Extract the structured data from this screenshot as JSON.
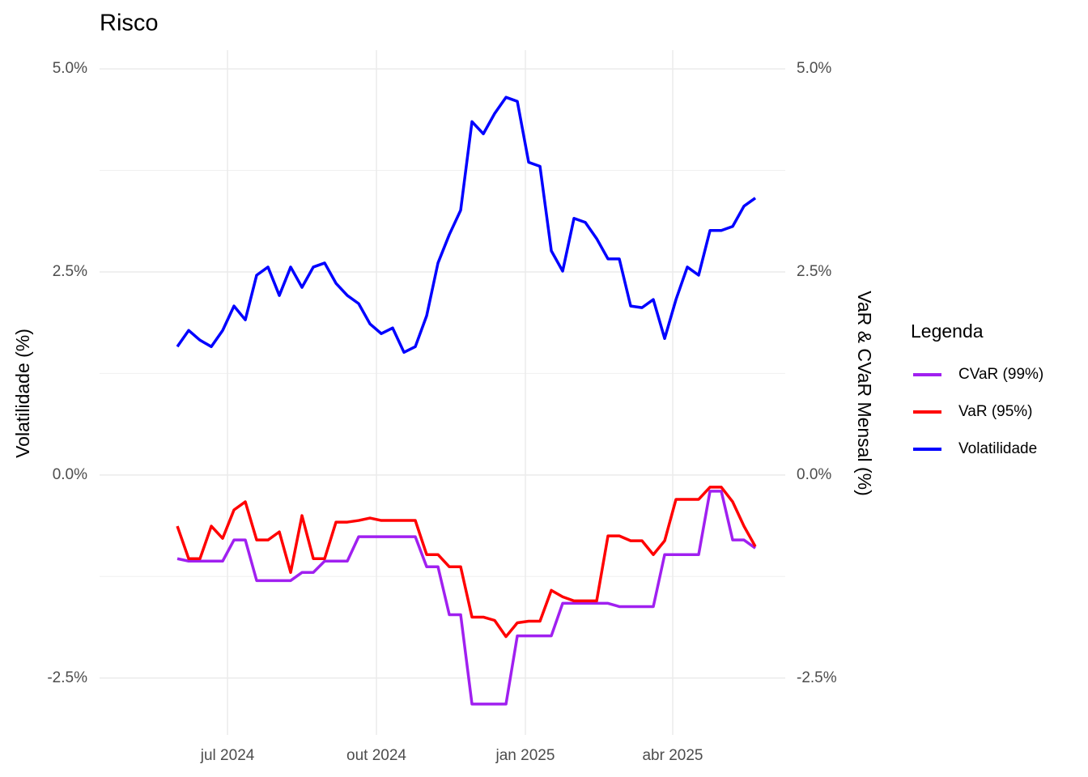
{
  "chart_data": {
    "type": "line",
    "title": "Risco",
    "y_label": "Volatilidade (%)",
    "y2_label": "VaR & CVaR Mensal (%)",
    "legend_title": "Legenda",
    "legend_position": "right",
    "grid": true,
    "xlim": [
      -6.86,
      53.64
    ],
    "xticks": [
      {
        "value": 4.43,
        "label": "jul 2024"
      },
      {
        "value": 17.57,
        "label": "out 2024"
      },
      {
        "value": 30.71,
        "label": "jan 2025"
      },
      {
        "value": 43.71,
        "label": "abr 2025"
      }
    ],
    "ylim": [
      -3.2,
      5.23
    ],
    "yticks": [
      {
        "value": -2.5,
        "label": "-2.5%"
      },
      {
        "value": 0,
        "label": "0.0%"
      },
      {
        "value": 2.5,
        "label": "2.5%"
      },
      {
        "value": 5,
        "label": "5.0%"
      }
    ],
    "yminor": [
      -1.25,
      1.25,
      3.75
    ],
    "y2lim": [
      -3.2,
      5.23
    ],
    "y2ticks": [
      {
        "value": -2.5,
        "label": "-2.5%"
      },
      {
        "value": 0,
        "label": "0.0%"
      },
      {
        "value": 2.5,
        "label": "2.5%"
      },
      {
        "value": 5,
        "label": "5.0%"
      }
    ],
    "series": [
      {
        "name": "CVaR (99%)",
        "color": "#a020f0",
        "axis": "y2",
        "values": [
          -1.03,
          -1.06,
          -1.06,
          -1.06,
          -1.06,
          -0.8,
          -0.8,
          -1.3,
          -1.3,
          -1.3,
          -1.3,
          -1.2,
          -1.2,
          -1.06,
          -1.06,
          -1.06,
          -0.76,
          -0.76,
          -0.76,
          -0.76,
          -0.76,
          -0.76,
          -1.13,
          -1.13,
          -1.72,
          -1.72,
          -2.82,
          -2.82,
          -2.82,
          -2.82,
          -1.98,
          -1.98,
          -1.98,
          -1.98,
          -1.58,
          -1.58,
          -1.58,
          -1.58,
          -1.58,
          -1.62,
          -1.62,
          -1.62,
          -1.62,
          -0.98,
          -0.98,
          -0.98,
          -0.98,
          -0.2,
          -0.2,
          -0.8,
          -0.8,
          -0.9
        ]
      },
      {
        "name": "VaR (95%)",
        "color": "#ff0000",
        "axis": "y2",
        "values": [
          -0.63,
          -1.03,
          -1.03,
          -0.63,
          -0.78,
          -0.43,
          -0.33,
          -0.8,
          -0.8,
          -0.7,
          -1.2,
          -0.5,
          -1.03,
          -1.03,
          -0.58,
          -0.58,
          -0.56,
          -0.53,
          -0.56,
          -0.56,
          -0.56,
          -0.56,
          -0.98,
          -0.98,
          -1.13,
          -1.13,
          -1.75,
          -1.75,
          -1.79,
          -1.99,
          -1.82,
          -1.8,
          -1.8,
          -1.42,
          -1.5,
          -1.55,
          -1.55,
          -1.55,
          -0.75,
          -0.75,
          -0.81,
          -0.81,
          -0.98,
          -0.81,
          -0.3,
          -0.3,
          -0.3,
          -0.15,
          -0.15,
          -0.33,
          -0.63,
          -0.88
        ]
      },
      {
        "name": "Volatilidade",
        "color": "#0000ff",
        "values": [
          1.58,
          1.78,
          1.66,
          1.58,
          1.78,
          2.08,
          1.91,
          2.46,
          2.56,
          2.21,
          2.56,
          2.31,
          2.56,
          2.61,
          2.36,
          2.21,
          2.11,
          1.86,
          1.74,
          1.81,
          1.51,
          1.58,
          1.96,
          2.61,
          2.96,
          3.26,
          4.35,
          4.2,
          4.45,
          4.65,
          4.6,
          3.85,
          3.8,
          2.76,
          2.51,
          3.16,
          3.11,
          2.91,
          2.66,
          2.66,
          2.08,
          2.06,
          2.16,
          1.68,
          2.16,
          2.56,
          2.46,
          3.01,
          3.01,
          3.06,
          3.31,
          3.41
        ]
      }
    ]
  }
}
